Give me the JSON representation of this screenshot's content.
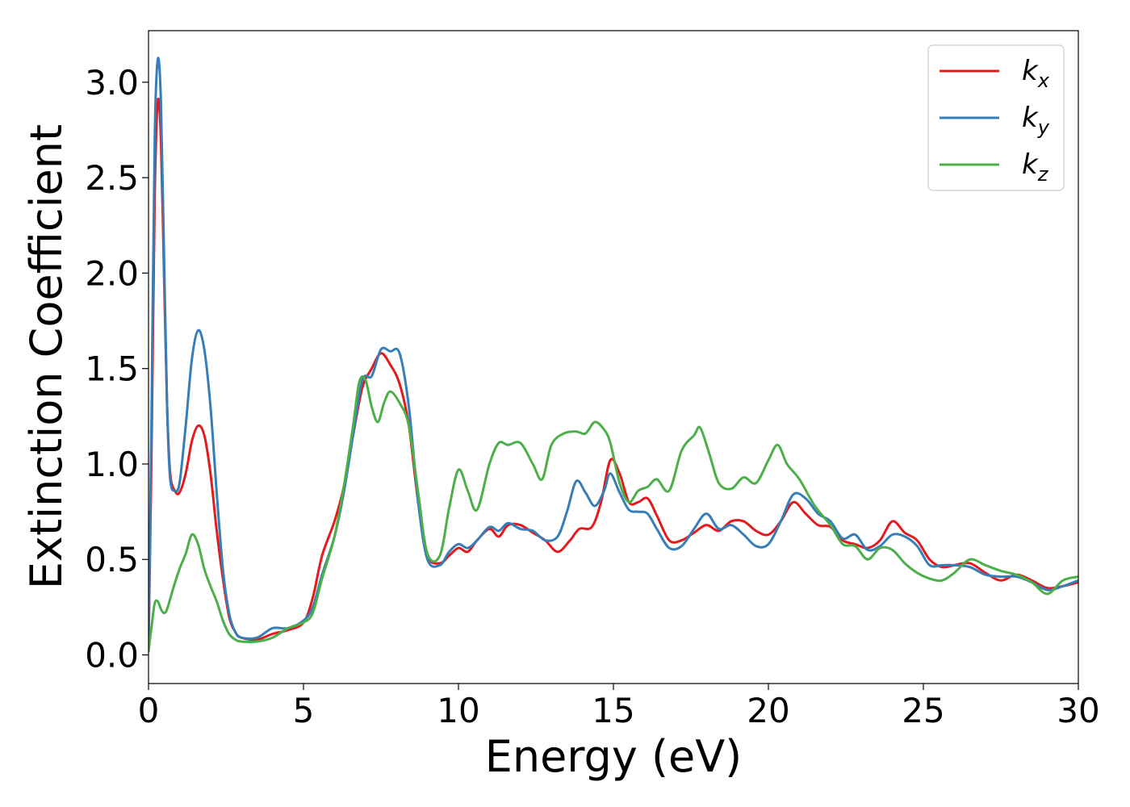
{
  "chart_data": {
    "type": "line",
    "title": "",
    "xlabel": "Energy (eV)",
    "ylabel": "Extinction Coefficient",
    "xlim": [
      0,
      30
    ],
    "ylim": [
      -0.15,
      3.27
    ],
    "xticks": [
      0,
      5,
      10,
      15,
      20,
      25,
      30
    ],
    "xtick_labels": [
      "0",
      "5",
      "10",
      "15",
      "20",
      "25",
      "30"
    ],
    "yticks": [
      0.0,
      0.5,
      1.0,
      1.5,
      2.0,
      2.5,
      3.0
    ],
    "ytick_labels": [
      "0.0",
      "0.5",
      "1.0",
      "1.5",
      "2.0",
      "2.5",
      "3.0"
    ],
    "grid": false,
    "legend": {
      "position": "top-right"
    },
    "series": [
      {
        "name": "k_x",
        "label_main": "k",
        "label_sub": "x",
        "color": "#e41a1c",
        "points": [
          [
            0,
            0.02
          ],
          [
            0.1,
            1.1
          ],
          [
            0.2,
            2.4
          ],
          [
            0.3,
            2.9
          ],
          [
            0.4,
            2.7
          ],
          [
            0.5,
            2.0
          ],
          [
            0.6,
            1.3
          ],
          [
            0.7,
            0.95
          ],
          [
            0.85,
            0.86
          ],
          [
            1.0,
            0.85
          ],
          [
            1.2,
            0.95
          ],
          [
            1.4,
            1.12
          ],
          [
            1.6,
            1.2
          ],
          [
            1.8,
            1.15
          ],
          [
            2.0,
            0.95
          ],
          [
            2.2,
            0.65
          ],
          [
            2.4,
            0.4
          ],
          [
            2.6,
            0.2
          ],
          [
            2.8,
            0.12
          ],
          [
            3.0,
            0.09
          ],
          [
            3.5,
            0.08
          ],
          [
            4.0,
            0.11
          ],
          [
            4.5,
            0.13
          ],
          [
            5.0,
            0.17
          ],
          [
            5.3,
            0.3
          ],
          [
            5.6,
            0.52
          ],
          [
            6.0,
            0.7
          ],
          [
            6.3,
            0.88
          ],
          [
            6.6,
            1.15
          ],
          [
            6.9,
            1.4
          ],
          [
            7.2,
            1.5
          ],
          [
            7.5,
            1.58
          ],
          [
            7.8,
            1.52
          ],
          [
            8.1,
            1.42
          ],
          [
            8.4,
            1.2
          ],
          [
            8.7,
            0.8
          ],
          [
            9.0,
            0.52
          ],
          [
            9.4,
            0.48
          ],
          [
            9.7,
            0.52
          ],
          [
            10.0,
            0.56
          ],
          [
            10.3,
            0.54
          ],
          [
            10.6,
            0.6
          ],
          [
            11.0,
            0.66
          ],
          [
            11.3,
            0.62
          ],
          [
            11.6,
            0.68
          ],
          [
            12.0,
            0.68
          ],
          [
            12.4,
            0.64
          ],
          [
            12.8,
            0.6
          ],
          [
            13.2,
            0.54
          ],
          [
            13.6,
            0.6
          ],
          [
            13.9,
            0.66
          ],
          [
            14.3,
            0.67
          ],
          [
            14.6,
            0.8
          ],
          [
            14.9,
            1.02
          ],
          [
            15.2,
            0.95
          ],
          [
            15.5,
            0.8
          ],
          [
            15.8,
            0.8
          ],
          [
            16.1,
            0.82
          ],
          [
            16.4,
            0.73
          ],
          [
            16.8,
            0.6
          ],
          [
            17.2,
            0.6
          ],
          [
            17.6,
            0.64
          ],
          [
            18.0,
            0.68
          ],
          [
            18.4,
            0.65
          ],
          [
            18.8,
            0.7
          ],
          [
            19.2,
            0.7
          ],
          [
            19.6,
            0.65
          ],
          [
            20.0,
            0.63
          ],
          [
            20.4,
            0.7
          ],
          [
            20.8,
            0.8
          ],
          [
            21.2,
            0.74
          ],
          [
            21.6,
            0.68
          ],
          [
            22.0,
            0.67
          ],
          [
            22.4,
            0.6
          ],
          [
            22.8,
            0.58
          ],
          [
            23.2,
            0.56
          ],
          [
            23.6,
            0.6
          ],
          [
            24.0,
            0.7
          ],
          [
            24.4,
            0.64
          ],
          [
            24.8,
            0.6
          ],
          [
            25.2,
            0.5
          ],
          [
            25.6,
            0.46
          ],
          [
            26.0,
            0.47
          ],
          [
            26.5,
            0.48
          ],
          [
            27.0,
            0.43
          ],
          [
            27.5,
            0.39
          ],
          [
            28.0,
            0.42
          ],
          [
            28.5,
            0.39
          ],
          [
            29.0,
            0.35
          ],
          [
            29.5,
            0.36
          ],
          [
            30.0,
            0.38
          ]
        ]
      },
      {
        "name": "k_y",
        "label_main": "k",
        "label_sub": "y",
        "color": "#377eb8",
        "points": [
          [
            0,
            0.02
          ],
          [
            0.1,
            1.3
          ],
          [
            0.2,
            2.7
          ],
          [
            0.3,
            3.12
          ],
          [
            0.4,
            2.9
          ],
          [
            0.5,
            2.1
          ],
          [
            0.6,
            1.3
          ],
          [
            0.7,
            0.92
          ],
          [
            0.85,
            0.86
          ],
          [
            1.0,
            0.9
          ],
          [
            1.2,
            1.2
          ],
          [
            1.4,
            1.55
          ],
          [
            1.6,
            1.7
          ],
          [
            1.8,
            1.6
          ],
          [
            2.0,
            1.3
          ],
          [
            2.2,
            0.85
          ],
          [
            2.4,
            0.45
          ],
          [
            2.6,
            0.22
          ],
          [
            2.8,
            0.12
          ],
          [
            3.0,
            0.09
          ],
          [
            3.5,
            0.09
          ],
          [
            4.0,
            0.14
          ],
          [
            4.5,
            0.14
          ],
          [
            5.0,
            0.18
          ],
          [
            5.3,
            0.25
          ],
          [
            5.6,
            0.42
          ],
          [
            6.0,
            0.62
          ],
          [
            6.3,
            0.85
          ],
          [
            6.6,
            1.15
          ],
          [
            6.9,
            1.44
          ],
          [
            7.2,
            1.46
          ],
          [
            7.5,
            1.6
          ],
          [
            7.8,
            1.59
          ],
          [
            8.1,
            1.58
          ],
          [
            8.4,
            1.3
          ],
          [
            8.7,
            0.8
          ],
          [
            9.0,
            0.5
          ],
          [
            9.4,
            0.47
          ],
          [
            9.7,
            0.54
          ],
          [
            10.0,
            0.58
          ],
          [
            10.3,
            0.56
          ],
          [
            10.6,
            0.6
          ],
          [
            11.0,
            0.67
          ],
          [
            11.3,
            0.65
          ],
          [
            11.6,
            0.69
          ],
          [
            12.0,
            0.66
          ],
          [
            12.4,
            0.65
          ],
          [
            12.8,
            0.6
          ],
          [
            13.2,
            0.62
          ],
          [
            13.5,
            0.75
          ],
          [
            13.8,
            0.91
          ],
          [
            14.1,
            0.85
          ],
          [
            14.4,
            0.78
          ],
          [
            14.7,
            0.86
          ],
          [
            14.9,
            0.95
          ],
          [
            15.2,
            0.85
          ],
          [
            15.5,
            0.76
          ],
          [
            15.8,
            0.75
          ],
          [
            16.1,
            0.74
          ],
          [
            16.4,
            0.66
          ],
          [
            16.8,
            0.56
          ],
          [
            17.2,
            0.57
          ],
          [
            17.6,
            0.66
          ],
          [
            18.0,
            0.74
          ],
          [
            18.4,
            0.66
          ],
          [
            18.8,
            0.68
          ],
          [
            19.2,
            0.63
          ],
          [
            19.6,
            0.57
          ],
          [
            20.0,
            0.58
          ],
          [
            20.4,
            0.7
          ],
          [
            20.8,
            0.84
          ],
          [
            21.2,
            0.82
          ],
          [
            21.6,
            0.74
          ],
          [
            22.0,
            0.7
          ],
          [
            22.4,
            0.61
          ],
          [
            22.8,
            0.63
          ],
          [
            23.2,
            0.55
          ],
          [
            23.6,
            0.57
          ],
          [
            24.0,
            0.63
          ],
          [
            24.4,
            0.62
          ],
          [
            24.8,
            0.57
          ],
          [
            25.2,
            0.47
          ],
          [
            25.6,
            0.47
          ],
          [
            26.0,
            0.47
          ],
          [
            26.5,
            0.46
          ],
          [
            27.0,
            0.42
          ],
          [
            27.5,
            0.41
          ],
          [
            28.0,
            0.41
          ],
          [
            28.5,
            0.38
          ],
          [
            29.0,
            0.34
          ],
          [
            29.5,
            0.36
          ],
          [
            30.0,
            0.39
          ]
        ]
      },
      {
        "name": "k_z",
        "label_main": "k",
        "label_sub": "z",
        "color": "#4daf4a",
        "points": [
          [
            0,
            0.02
          ],
          [
            0.1,
            0.15
          ],
          [
            0.2,
            0.27
          ],
          [
            0.3,
            0.28
          ],
          [
            0.4,
            0.24
          ],
          [
            0.5,
            0.22
          ],
          [
            0.6,
            0.24
          ],
          [
            0.8,
            0.35
          ],
          [
            1.0,
            0.45
          ],
          [
            1.2,
            0.53
          ],
          [
            1.4,
            0.63
          ],
          [
            1.6,
            0.58
          ],
          [
            1.8,
            0.45
          ],
          [
            2.0,
            0.36
          ],
          [
            2.2,
            0.28
          ],
          [
            2.4,
            0.18
          ],
          [
            2.6,
            0.11
          ],
          [
            2.8,
            0.08
          ],
          [
            3.0,
            0.07
          ],
          [
            3.5,
            0.07
          ],
          [
            4.0,
            0.09
          ],
          [
            4.5,
            0.14
          ],
          [
            5.0,
            0.17
          ],
          [
            5.3,
            0.22
          ],
          [
            5.6,
            0.4
          ],
          [
            6.0,
            0.62
          ],
          [
            6.3,
            0.88
          ],
          [
            6.6,
            1.2
          ],
          [
            6.8,
            1.43
          ],
          [
            7.0,
            1.44
          ],
          [
            7.2,
            1.3
          ],
          [
            7.4,
            1.22
          ],
          [
            7.6,
            1.32
          ],
          [
            7.8,
            1.38
          ],
          [
            8.1,
            1.32
          ],
          [
            8.4,
            1.2
          ],
          [
            8.7,
            0.85
          ],
          [
            9.0,
            0.53
          ],
          [
            9.4,
            0.52
          ],
          [
            9.7,
            0.77
          ],
          [
            10.0,
            0.97
          ],
          [
            10.3,
            0.86
          ],
          [
            10.6,
            0.76
          ],
          [
            11.0,
            1.0
          ],
          [
            11.3,
            1.11
          ],
          [
            11.6,
            1.1
          ],
          [
            12.0,
            1.11
          ],
          [
            12.4,
            1.0
          ],
          [
            12.7,
            0.92
          ],
          [
            13.0,
            1.1
          ],
          [
            13.4,
            1.16
          ],
          [
            13.8,
            1.17
          ],
          [
            14.1,
            1.16
          ],
          [
            14.4,
            1.22
          ],
          [
            14.7,
            1.18
          ],
          [
            14.9,
            1.11
          ],
          [
            15.2,
            0.9
          ],
          [
            15.5,
            0.8
          ],
          [
            15.8,
            0.86
          ],
          [
            16.1,
            0.88
          ],
          [
            16.4,
            0.92
          ],
          [
            16.8,
            0.86
          ],
          [
            17.2,
            1.07
          ],
          [
            17.6,
            1.15
          ],
          [
            17.8,
            1.19
          ],
          [
            18.1,
            1.05
          ],
          [
            18.4,
            0.9
          ],
          [
            18.8,
            0.87
          ],
          [
            19.2,
            0.93
          ],
          [
            19.6,
            0.9
          ],
          [
            20.0,
            1.02
          ],
          [
            20.3,
            1.1
          ],
          [
            20.6,
            1.0
          ],
          [
            21.0,
            0.92
          ],
          [
            21.5,
            0.78
          ],
          [
            22.0,
            0.68
          ],
          [
            22.4,
            0.58
          ],
          [
            22.8,
            0.57
          ],
          [
            23.2,
            0.5
          ],
          [
            23.6,
            0.56
          ],
          [
            24.0,
            0.55
          ],
          [
            24.4,
            0.48
          ],
          [
            24.8,
            0.43
          ],
          [
            25.2,
            0.4
          ],
          [
            25.6,
            0.39
          ],
          [
            26.0,
            0.43
          ],
          [
            26.5,
            0.5
          ],
          [
            27.0,
            0.47
          ],
          [
            27.5,
            0.44
          ],
          [
            28.0,
            0.42
          ],
          [
            28.5,
            0.38
          ],
          [
            29.0,
            0.32
          ],
          [
            29.5,
            0.39
          ],
          [
            30.0,
            0.41
          ]
        ]
      }
    ]
  }
}
